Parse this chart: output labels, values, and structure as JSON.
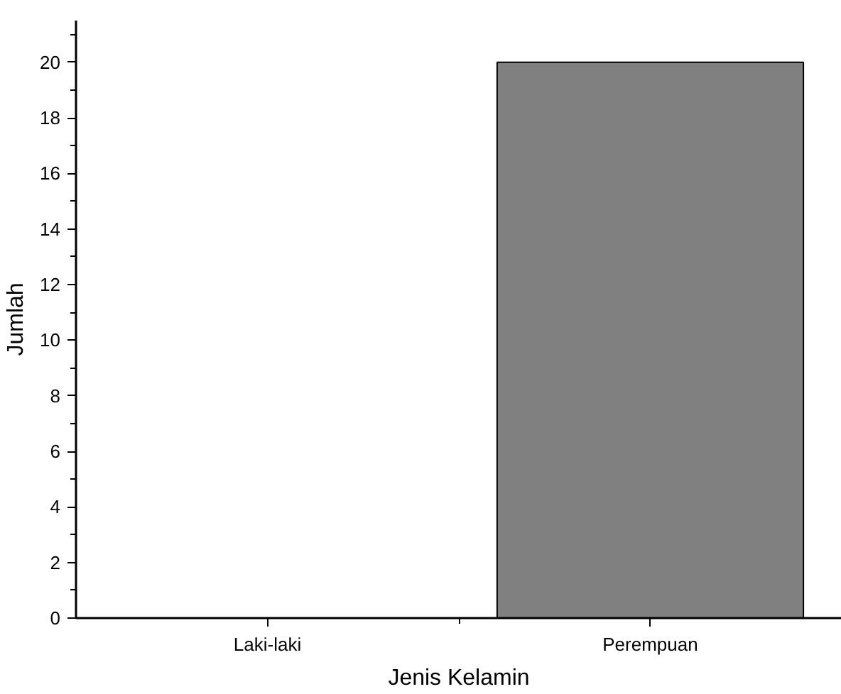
{
  "chart_data": {
    "type": "bar",
    "xlabel": "Jenis Kelamin",
    "ylabel": "Jumlah",
    "categories": [
      "Laki-laki",
      "Perempuan"
    ],
    "values": [
      0,
      20
    ],
    "color": "#808080",
    "ylim": [
      0,
      21.5
    ],
    "yticks": [
      0,
      2,
      4,
      6,
      8,
      10,
      12,
      14,
      16,
      18,
      20
    ],
    "grid": false
  }
}
